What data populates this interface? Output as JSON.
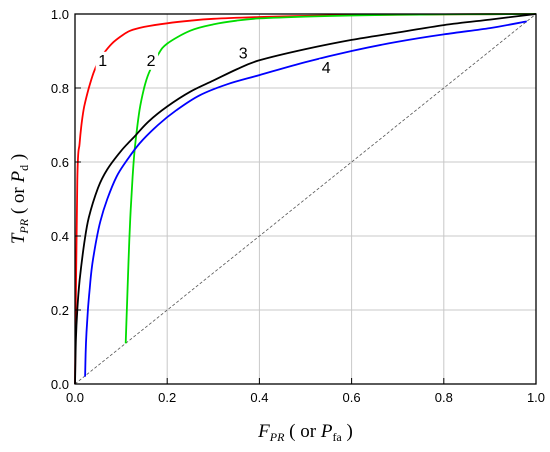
{
  "chart_data": {
    "type": "line",
    "xlabel": {
      "main": "F",
      "sub": "PR",
      "mid": " ( or ",
      "main2": "P",
      "sub2": "fa",
      "end": " )"
    },
    "ylabel": {
      "main": "T",
      "sub": "PR",
      "mid": " ( or ",
      "main2": "P",
      "sub2": "d",
      "end": " )"
    },
    "xlim": [
      0,
      1
    ],
    "ylim": [
      0,
      1
    ],
    "x_ticks": [
      "0.0",
      "0.2",
      "0.4",
      "0.6",
      "0.8",
      "1.0"
    ],
    "y_ticks": [
      "0.0",
      "0.2",
      "0.4",
      "0.6",
      "0.8",
      "1.0"
    ],
    "grid": true,
    "series": [
      {
        "label": "1",
        "color": "#ff0000",
        "label_at": [
          0.06,
          0.86
        ],
        "x": [
          0.0,
          0.005,
          0.01,
          0.015,
          0.02,
          0.03,
          0.04,
          0.05,
          0.06,
          0.08,
          0.1,
          0.12,
          0.15,
          0.2,
          0.25,
          0.3,
          0.4,
          0.5,
          0.6,
          0.7,
          0.8,
          0.9,
          1.0
        ],
        "y": [
          0.0,
          0.55,
          0.65,
          0.71,
          0.75,
          0.8,
          0.84,
          0.87,
          0.89,
          0.92,
          0.94,
          0.955,
          0.965,
          0.975,
          0.982,
          0.987,
          0.992,
          0.995,
          0.997,
          0.998,
          0.999,
          0.9995,
          1.0
        ]
      },
      {
        "label": "2",
        "color": "#00dd00",
        "label_at": [
          0.165,
          0.86
        ],
        "x": [
          0.11,
          0.113,
          0.116,
          0.12,
          0.125,
          0.13,
          0.14,
          0.15,
          0.16,
          0.18,
          0.2,
          0.25,
          0.3,
          0.35,
          0.4,
          0.5,
          0.6,
          0.7,
          0.8,
          0.9,
          1.0
        ],
        "y": [
          0.11,
          0.22,
          0.33,
          0.45,
          0.56,
          0.64,
          0.74,
          0.8,
          0.84,
          0.89,
          0.92,
          0.955,
          0.972,
          0.982,
          0.988,
          0.993,
          0.996,
          0.998,
          0.999,
          0.9995,
          1.0
        ]
      },
      {
        "label": "3",
        "color": "#000000",
        "label_at": [
          0.365,
          0.88
        ],
        "x": [
          0.0,
          0.002,
          0.005,
          0.01,
          0.02,
          0.03,
          0.05,
          0.07,
          0.1,
          0.13,
          0.16,
          0.2,
          0.25,
          0.3,
          0.35,
          0.4,
          0.5,
          0.6,
          0.7,
          0.8,
          0.9,
          1.0
        ],
        "y": [
          0.0,
          0.12,
          0.2,
          0.28,
          0.38,
          0.45,
          0.53,
          0.58,
          0.63,
          0.67,
          0.71,
          0.75,
          0.79,
          0.82,
          0.85,
          0.875,
          0.905,
          0.93,
          0.95,
          0.97,
          0.985,
          1.0
        ]
      },
      {
        "label": "4",
        "color": "#0000ff",
        "label_at": [
          0.545,
          0.84
        ],
        "x": [
          0.022,
          0.023,
          0.025,
          0.028,
          0.032,
          0.037,
          0.045,
          0.055,
          0.07,
          0.09,
          0.11,
          0.14,
          0.18,
          0.22,
          0.27,
          0.33,
          0.4,
          0.5,
          0.6,
          0.7,
          0.8,
          0.9,
          0.98
        ],
        "y": [
          0.02,
          0.08,
          0.14,
          0.2,
          0.26,
          0.32,
          0.38,
          0.44,
          0.5,
          0.56,
          0.6,
          0.65,
          0.7,
          0.74,
          0.78,
          0.81,
          0.835,
          0.87,
          0.9,
          0.925,
          0.945,
          0.962,
          0.98
        ]
      }
    ],
    "reference_line": {
      "x": [
        0,
        1
      ],
      "y": [
        0,
        1
      ],
      "style": "dashed",
      "color": "#555555"
    }
  }
}
